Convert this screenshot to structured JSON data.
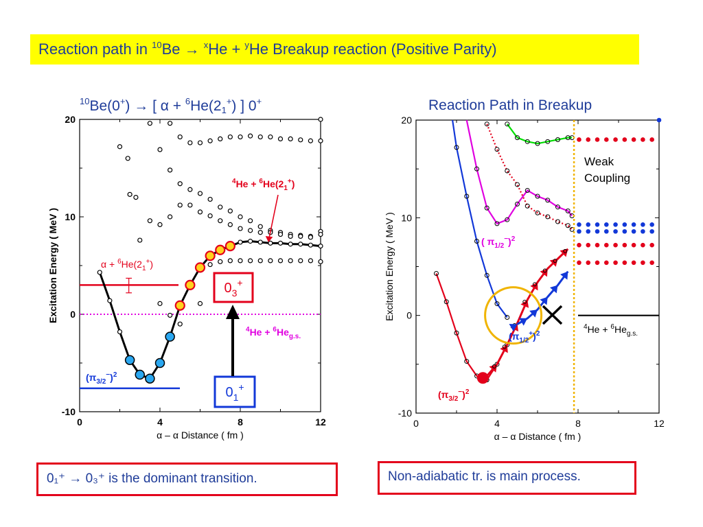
{
  "slide": {
    "title_a": "Reaction path in ",
    "title_sup1": "10",
    "title_b": "Be → ",
    "title_sup2": "x",
    "title_c": "He + ",
    "title_sup3": "y",
    "title_d": "He Breakup reaction (Positive Parity)"
  },
  "left_chart_title": {
    "sup1": "10",
    "a": "Be(0",
    "sup2": "+",
    "b": ") → [ α + ",
    "sup3": "6",
    "c": "He(2",
    "sub1": "1",
    "sup4": "+",
    "d": ") ] 0",
    "sup5": "+"
  },
  "right_chart_title": "Reaction Path in Breakup",
  "notes": {
    "left": "0₁⁺ → 0₃⁺ is the dominant transition.",
    "right": "Non-adiabatic tr. is main process."
  },
  "colors": {
    "title_bg": "#ffff00",
    "title_text": "#1f3c99",
    "red": "#e3001b",
    "blue": "#1238d8",
    "magenta": "#e000e0",
    "green": "#00dd00",
    "orange": "#f0b400",
    "cyan": "#2aa7f0",
    "yellow_fill": "#ffd21e"
  },
  "chart_data": [
    {
      "type": "scatter",
      "title": "10Be(0+) → [ α + 6He(21+) ] 0+",
      "xlabel": "α – α  Distance ( fm )",
      "ylabel": "Excitation Energy ( MeV )",
      "xlim": [
        0,
        12
      ],
      "ylim": [
        -10,
        20
      ],
      "xticks": [
        "0",
        "4",
        "8",
        "12"
      ],
      "yticks": [
        "-10",
        "0",
        "10",
        "20"
      ],
      "open_points": [
        [
          2.0,
          17.2
        ],
        [
          2.4,
          16.0
        ],
        [
          2.8,
          12.0
        ],
        [
          3.0,
          7.6
        ],
        [
          3.5,
          9.6
        ],
        [
          3.5,
          19.6
        ],
        [
          4.0,
          9.2
        ],
        [
          4.0,
          16.9
        ],
        [
          4.5,
          10.0
        ],
        [
          4.5,
          19.6
        ],
        [
          4.5,
          14.8
        ],
        [
          5.0,
          18.2
        ],
        [
          5.0,
          13.4
        ],
        [
          5.0,
          11.2
        ],
        [
          5.5,
          17.6
        ],
        [
          5.5,
          12.8
        ],
        [
          5.5,
          11.2
        ],
        [
          6.0,
          17.6
        ],
        [
          6.0,
          12.4
        ],
        [
          6.0,
          10.5
        ],
        [
          6.5,
          17.8
        ],
        [
          6.5,
          11.8
        ],
        [
          6.5,
          10.1
        ],
        [
          7.0,
          18.0
        ],
        [
          7.0,
          11.0
        ],
        [
          7.0,
          9.6
        ],
        [
          7.5,
          18.2
        ],
        [
          7.5,
          10.6
        ],
        [
          7.5,
          9.2
        ],
        [
          8.0,
          18.2
        ],
        [
          8.0,
          10.0
        ],
        [
          8.0,
          8.8
        ],
        [
          8.5,
          18.3
        ],
        [
          8.5,
          9.6
        ],
        [
          8.5,
          8.6
        ],
        [
          9.0,
          18.2
        ],
        [
          9.0,
          9.0
        ],
        [
          9.0,
          8.4
        ],
        [
          9.5,
          18.2
        ],
        [
          9.5,
          8.6
        ],
        [
          9.5,
          8.4
        ],
        [
          10.0,
          18.0
        ],
        [
          10.0,
          8.4
        ],
        [
          10.0,
          8.2
        ],
        [
          10.5,
          18.0
        ],
        [
          10.5,
          8.2
        ],
        [
          10.5,
          8.0
        ],
        [
          11.0,
          17.9
        ],
        [
          11.0,
          8.1
        ],
        [
          11.0,
          8.0
        ],
        [
          11.5,
          17.8
        ],
        [
          11.5,
          8.0
        ],
        [
          11.5,
          7.9
        ],
        [
          12.0,
          17.8
        ],
        [
          12.0,
          8.5
        ],
        [
          12.0,
          8.2
        ],
        [
          12.0,
          20.0
        ],
        [
          2.5,
          12.3
        ],
        [
          4.0,
          1.1
        ],
        [
          4.5,
          -0.1
        ],
        [
          5.0,
          -1.0
        ],
        [
          6.0,
          1.1
        ],
        [
          6.5,
          5.1
        ],
        [
          7.0,
          5.4
        ],
        [
          7.5,
          5.5
        ],
        [
          8.0,
          5.5
        ],
        [
          8.5,
          5.5
        ],
        [
          9.0,
          5.5
        ],
        [
          9.5,
          5.5
        ],
        [
          10.0,
          5.5
        ],
        [
          10.5,
          5.5
        ],
        [
          11.0,
          5.5
        ],
        [
          11.5,
          5.5
        ],
        [
          12.0,
          5.4
        ]
      ],
      "series": [
        {
          "name": "(π3/2−)2",
          "color": "blue",
          "x": [
            2.5,
            3.0,
            3.5,
            4.0,
            4.5
          ],
          "y": [
            -4.7,
            -6.2,
            -6.6,
            -5.0,
            -2.3
          ]
        },
        {
          "name": "",
          "color": "yellow",
          "x": [
            5.0,
            5.5,
            6.0,
            6.5,
            7.0,
            7.5
          ],
          "y": [
            0.9,
            3.0,
            4.8,
            6.0,
            6.6,
            7.0
          ]
        },
        {
          "name": "",
          "color": "black",
          "x": [
            1.0,
            1.5,
            2.0,
            2.5,
            3.0,
            3.5,
            4.0,
            4.5,
            5.0,
            5.5,
            6.0,
            6.5,
            7.0,
            7.5,
            8.0,
            8.5,
            9.0,
            9.5,
            10.0,
            10.5,
            11.0,
            11.5,
            12.0
          ],
          "y": [
            4.3,
            1.4,
            -1.8,
            -4.7,
            -6.2,
            -6.6,
            -5.0,
            -2.3,
            0.9,
            3.0,
            4.8,
            6.0,
            6.6,
            7.0,
            7.4,
            7.5,
            7.4,
            7.3,
            7.3,
            7.2,
            7.2,
            7.1,
            7.0
          ]
        }
      ],
      "hlines": [
        {
          "label": "α + 6He(21+)",
          "y": 3.0,
          "color": "red",
          "style": "solid"
        },
        {
          "label": "4He + 6Heg.s.",
          "y": 0.0,
          "color": "magenta",
          "style": "dotted"
        },
        {
          "label": "(π3/2−)2",
          "y": -7.6,
          "color": "blue",
          "style": "solid"
        }
      ],
      "annotations": [
        "4He + 6He(21+)",
        "α + 6He(21+)",
        "4He + 6Heg.s.",
        "(π3/2−)2",
        "03+",
        "01+"
      ],
      "boxes": [
        {
          "label_base": "0",
          "label_sub": "3",
          "label_sup": "+",
          "color": "red"
        },
        {
          "label_base": "0",
          "label_sub": "1",
          "label_sup": "+",
          "color": "blue"
        }
      ]
    },
    {
      "type": "line",
      "title": "Reaction Path in Breakup",
      "xlabel": "α – α  Distance ( fm )",
      "ylabel": "Excitation Energy ( MeV )",
      "xlim": [
        0,
        12
      ],
      "ylim": [
        -10,
        20
      ],
      "xticks": [
        "0",
        "4",
        "8",
        "12"
      ],
      "yticks": [
        "-10",
        "0",
        "10",
        "20"
      ],
      "series": [
        {
          "name": "(π3/2−)2",
          "color": "red",
          "x": [
            1.0,
            1.5,
            2.0,
            2.5,
            3.0,
            3.5,
            4.0,
            4.5
          ],
          "y": [
            4.3,
            1.4,
            -1.8,
            -4.7,
            -6.2,
            -6.6,
            -5.0,
            -3.0
          ]
        },
        {
          "name": "",
          "color": "blue",
          "x": [
            1.8,
            2.0,
            2.5,
            3.0,
            3.5,
            4.0,
            4.5
          ],
          "y": [
            20.0,
            17.2,
            12.2,
            7.6,
            4.1,
            1.2,
            -0.2
          ]
        },
        {
          "name": "(π1/2−)2",
          "color": "magenta",
          "x": [
            2.5,
            3.0,
            3.5,
            4.0,
            4.5,
            5.0,
            5.5,
            6.0,
            6.5,
            7.0,
            7.5,
            7.7
          ],
          "y": [
            20.0,
            15.0,
            11.0,
            9.4,
            9.8,
            11.4,
            12.8,
            12.2,
            11.8,
            11.1,
            10.7,
            10.2
          ]
        },
        {
          "name": "",
          "color": "green",
          "x": [
            4.5,
            5.0,
            5.5,
            6.0,
            6.5,
            7.0,
            7.5,
            7.7
          ],
          "y": [
            19.6,
            18.2,
            17.8,
            17.6,
            17.8,
            18.0,
            18.2,
            18.2
          ]
        }
      ],
      "dotted_red_branch": {
        "x": [
          3.5,
          4.0,
          4.5,
          5.0,
          5.5,
          6.0,
          6.5,
          7.0,
          7.5,
          7.7
        ],
        "y": [
          19.6,
          17.0,
          14.8,
          13.4,
          11.2,
          10.5,
          10.1,
          9.6,
          9.2,
          8.8
        ]
      },
      "arrows_red": {
        "x": [
          3.5,
          4.0,
          4.5,
          5.0,
          5.5,
          6.0,
          6.5,
          7.0,
          7.5
        ],
        "y": [
          -6.2,
          -5.0,
          -3.0,
          -0.8,
          1.6,
          3.4,
          4.8,
          5.8,
          6.8
        ]
      },
      "arrows_blue": {
        "x": [
          5.0,
          5.5,
          6.0,
          6.5,
          7.0,
          7.5
        ],
        "y": [
          -0.9,
          -0.3,
          0.6,
          1.9,
          3.1,
          4.5
        ]
      },
      "right_dots": [
        {
          "color": "red",
          "y": 18.0
        },
        {
          "color": "blue",
          "y": 9.3
        },
        {
          "color": "blue",
          "y": 8.6
        },
        {
          "color": "red",
          "y": 7.2
        },
        {
          "color": "red",
          "y": 5.4
        }
      ],
      "threshold_line": {
        "label": "4He + 6Heg.s.",
        "y": 0.0
      },
      "vline_x": 7.8,
      "annotations": [
        "Weak",
        "Coupling",
        "(π1/2−)2",
        "(π1/2+)2",
        "(π3/2−)2",
        "4He + 6Heg.s."
      ]
    }
  ]
}
